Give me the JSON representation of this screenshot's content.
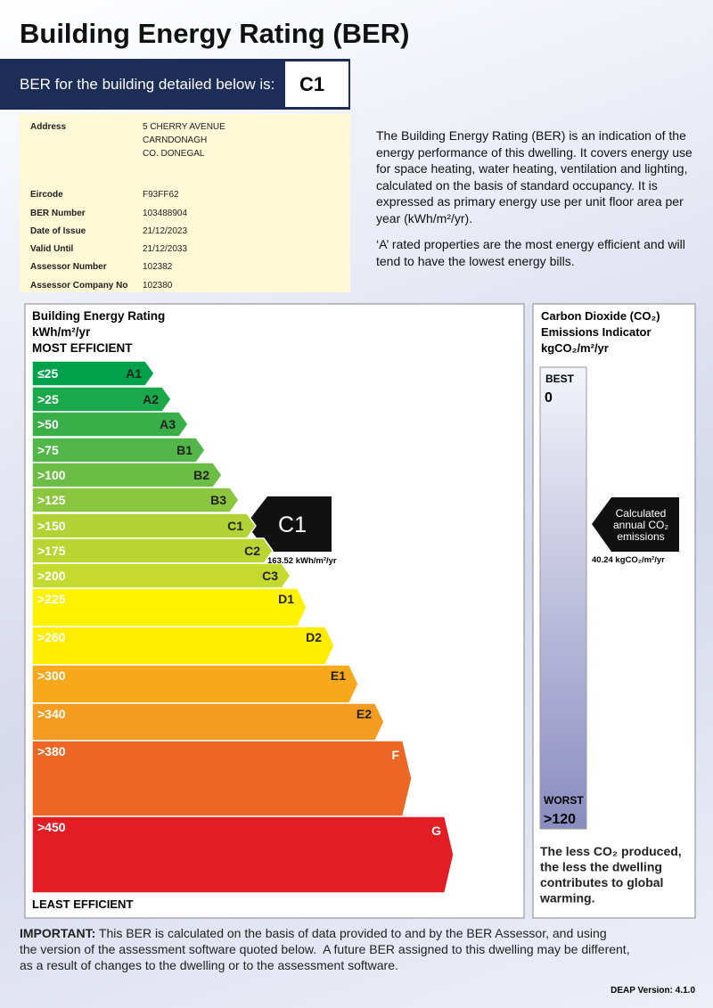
{
  "header": {
    "title": "Building Energy Rating (BER)",
    "rating_label": "BER for the building detailed below is:",
    "rating": "C1"
  },
  "details": {
    "address_label": "Address",
    "address_lines": [
      "5 CHERRY AVENUE",
      "CARNDONAGH",
      "CO. DONEGAL"
    ],
    "rows": [
      [
        "Eircode",
        "F93FF62"
      ],
      [
        "BER Number",
        "103488904"
      ],
      [
        "Date of Issue",
        "21/12/2023"
      ],
      [
        "Valid Until",
        "21/12/2033"
      ],
      [
        "Assessor Number",
        "102382"
      ],
      [
        "Assessor Company No",
        "102380"
      ]
    ]
  },
  "intro": {
    "paragraphs": [
      "The Building Energy Rating (BER) is an indication of the energy performance of this dwelling.  It covers energy use for space heating, water heating, ventilation and lighting, calculated on the basis of standard occupancy. It is expressed as primary energy use per unit floor area per year (kWh/m²/yr).",
      "‘A’ rated properties are the most energy efficient and will tend to have the lowest energy bills."
    ]
  },
  "scale": {
    "title_lines": [
      "Building Energy Rating",
      "kWh/m²/yr",
      "MOST EFFICIENT"
    ],
    "least_label": "LEAST EFFICIENT",
    "bands": [
      {
        "threshold": "≤25",
        "grade": "A1"
      },
      {
        "threshold": ">25",
        "grade": "A2"
      },
      {
        "threshold": ">50",
        "grade": "A3"
      },
      {
        "threshold": ">75",
        "grade": "B1"
      },
      {
        "threshold": ">100",
        "grade": "B2"
      },
      {
        "threshold": ">125",
        "grade": "B3"
      },
      {
        "threshold": ">150",
        "grade": "C1"
      },
      {
        "threshold": ">175",
        "grade": "C2"
      },
      {
        "threshold": ">200",
        "grade": "C3"
      },
      {
        "threshold": ">225",
        "grade": "D1"
      },
      {
        "threshold": ">260",
        "grade": "D2"
      },
      {
        "threshold": ">300",
        "grade": "E1"
      },
      {
        "threshold": ">340",
        "grade": "E2"
      },
      {
        "threshold": ">380",
        "grade": "F"
      },
      {
        "threshold": ">450",
        "grade": "G"
      }
    ],
    "indicator": {
      "grade": "C1",
      "value": "163.52 kWh/m²/yr"
    }
  },
  "co2": {
    "title_lines": [
      "Carbon Dioxide (CO₂)",
      "Emissions Indicator",
      "kgCO₂/m²/yr"
    ],
    "best_label": "BEST",
    "best": "0",
    "worst_label": "WORST",
    "worst": ">120",
    "indicator_lines": [
      "Calculated",
      "annual CO₂",
      "emissions"
    ],
    "value": "40.24 kgCO₂/m²/yr",
    "note_lines": [
      "The less CO₂ produced,",
      "the less the dwelling",
      "contributes to global",
      "warming."
    ]
  },
  "footer": {
    "important_label": "IMPORTANT:",
    "important_lines": [
      " This BER is calculated on the basis of data provided to and by the BER Assessor, and using",
      "the version of the assessment software quoted below.  A future BER assigned to this dwelling may be different,",
      "as a result of changes to the dwelling or to the assessment software."
    ],
    "version": "DEAP Version: 4.1.0"
  }
}
